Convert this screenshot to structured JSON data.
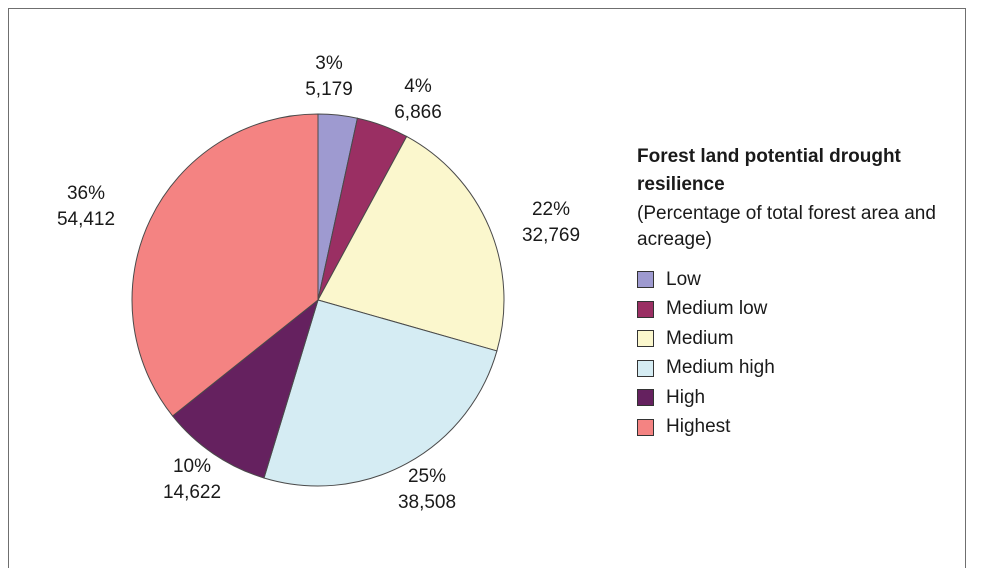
{
  "chart_data": {
    "type": "pie",
    "title": "Forest land potential drought resilience",
    "subtitle": "(Percentage of total forest area and acreage)",
    "categories": [
      "Low",
      "Medium low",
      "Medium",
      "Medium high",
      "High",
      "Highest"
    ],
    "percent_labels": [
      "3%",
      "4%",
      "22%",
      "25%",
      "10%",
      "36%"
    ],
    "value_labels": [
      "5,179",
      "6,866",
      "32,769",
      "38,508",
      "14,622",
      "54,412"
    ],
    "values": [
      5179,
      6866,
      32769,
      38508,
      14622,
      54412
    ],
    "colors": [
      "#9e9ad0",
      "#9a2f63",
      "#fbf7cd",
      "#d5ecf3",
      "#65215f",
      "#f48382"
    ],
    "start_angle": "12 o'clock",
    "direction": "clockwise",
    "legend_position": "right"
  }
}
